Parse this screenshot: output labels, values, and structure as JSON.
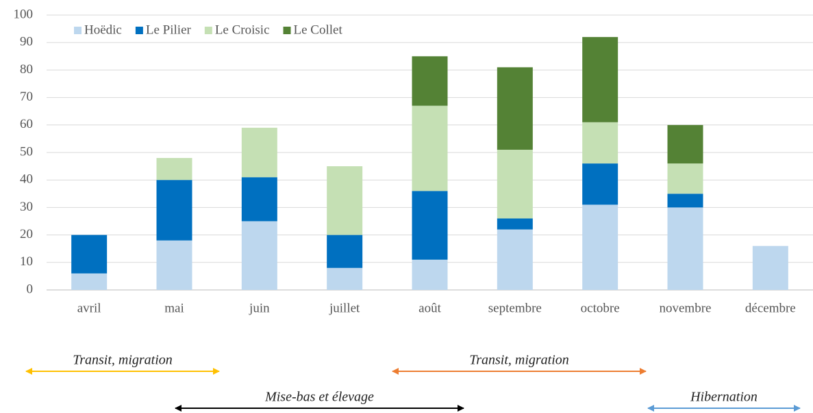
{
  "chart_data": {
    "type": "stacked_bar",
    "categories": [
      "avril",
      "mai",
      "juin",
      "juillet",
      "août",
      "septembre",
      "octobre",
      "novembre",
      "décembre"
    ],
    "series": [
      {
        "name": "Hoëdic",
        "color": "#bdd7ee",
        "values": [
          6,
          18,
          25,
          8,
          11,
          22,
          31,
          30,
          16
        ]
      },
      {
        "name": "Le Pilier",
        "color": "#0070c0",
        "values": [
          14,
          22,
          16,
          12,
          25,
          4,
          15,
          5,
          0
        ]
      },
      {
        "name": "Le Croisic",
        "color": "#c5e0b4",
        "values": [
          0,
          8,
          18,
          25,
          31,
          25,
          15,
          11,
          0
        ]
      },
      {
        "name": "Le Collet",
        "color": "#548235",
        "values": [
          0,
          0,
          0,
          0,
          18,
          30,
          31,
          14,
          0
        ]
      }
    ],
    "ylim": [
      0,
      100
    ],
    "yticks": [
      0,
      10,
      20,
      30,
      40,
      50,
      60,
      70,
      80,
      90,
      100
    ],
    "grid": true,
    "annotations": [
      {
        "text": "Transit, migration",
        "color": "#ffc000"
      },
      {
        "text": "Transit, migration",
        "color": "#ed7d31"
      },
      {
        "text": "Mise-bas et élevage",
        "color": "#000000"
      },
      {
        "text": "Hibernation",
        "color": "#5b9bd5"
      }
    ]
  }
}
